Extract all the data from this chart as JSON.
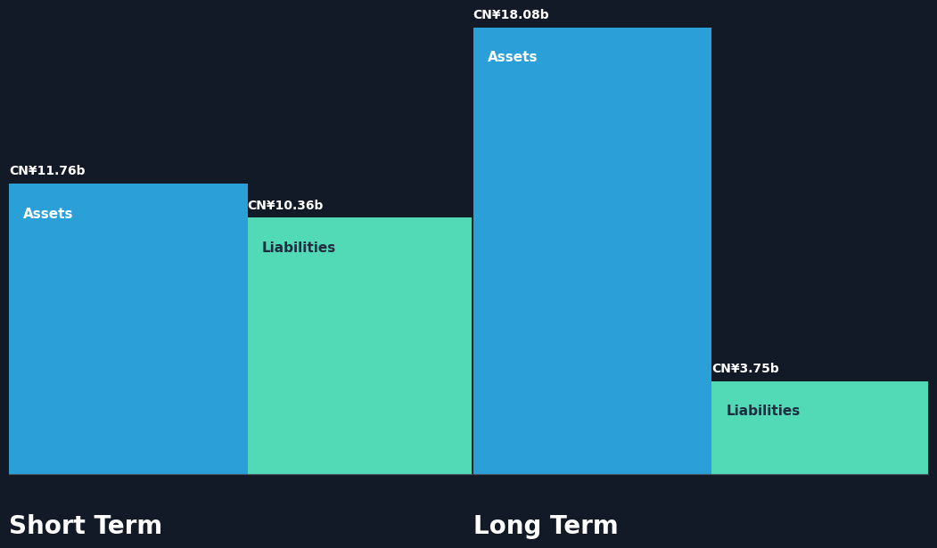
{
  "background_color": "#131a27",
  "asset_color": "#2b9fd8",
  "liability_color": "#52d9b5",
  "text_color": "#ffffff",
  "liability_label_color": "#1e2d40",
  "short_term": {
    "assets_value": 11.76,
    "liabilities_value": 10.36,
    "assets_label": "CN¥11.76b",
    "liabilities_label": "CN¥10.36b",
    "title": "Short Term"
  },
  "long_term": {
    "assets_value": 18.08,
    "liabilities_value": 3.75,
    "assets_label": "CN¥18.08b",
    "liabilities_label": "CN¥3.75b",
    "title": "Long Term"
  },
  "max_value": 18.08,
  "bar_label_assets": "Assets",
  "bar_label_liabilities": "Liabilities",
  "label_fontsize": 10,
  "inner_label_fontsize": 11,
  "title_fontsize": 20
}
